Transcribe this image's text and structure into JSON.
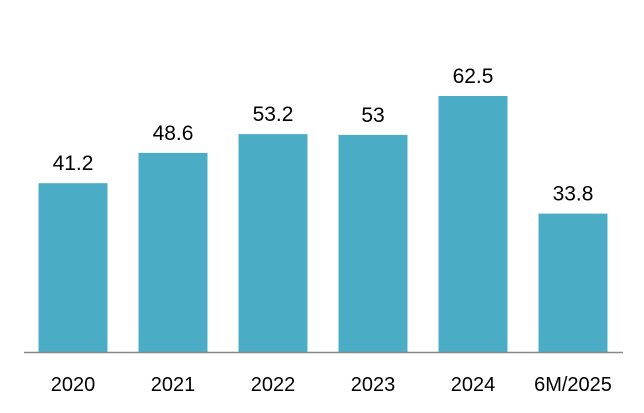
{
  "chart_data": {
    "type": "bar",
    "categories": [
      "2020",
      "2021",
      "2022",
      "2023",
      "2024",
      "6M/2025"
    ],
    "values": [
      41.2,
      48.6,
      53.2,
      53,
      62.5,
      33.8
    ],
    "data_labels": [
      "41.2",
      "48.6",
      "53.2",
      "53",
      "62.5",
      "33.8"
    ],
    "bar_color": "#4bacc6",
    "axis_color": "#888888",
    "title": "",
    "xlabel": "",
    "ylabel": "",
    "ylim": [
      0,
      70
    ],
    "grid": false,
    "legend": "none"
  }
}
